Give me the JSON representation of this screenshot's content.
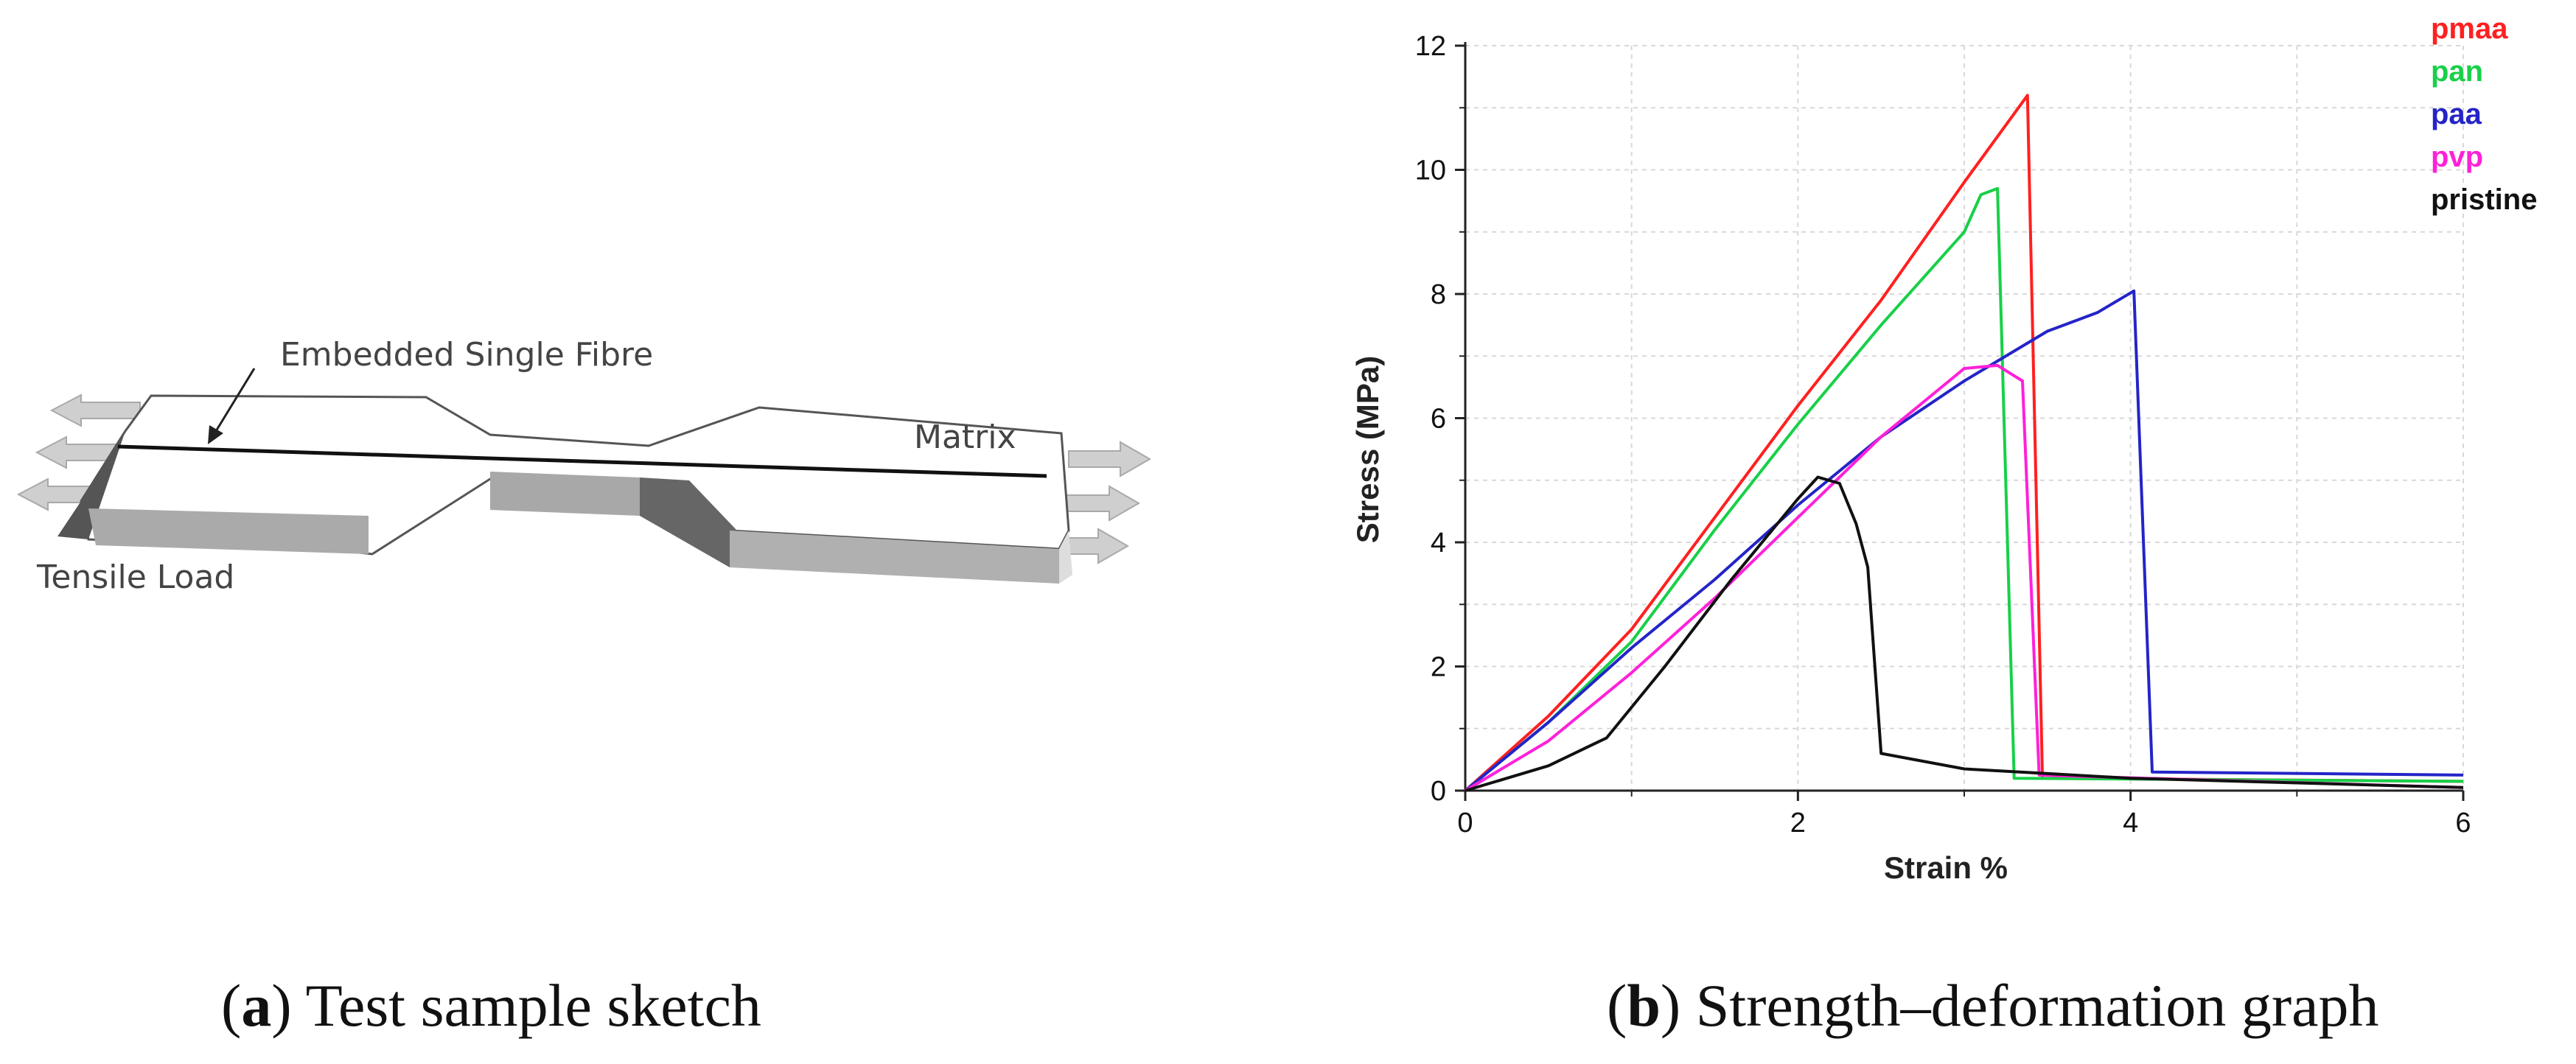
{
  "sketch": {
    "fibre_label": "Embedded Single Fibre",
    "matrix_label": "Matrix",
    "load_label": "Tensile Load"
  },
  "captions": {
    "a": {
      "letter": "a",
      "text": "Test sample sketch"
    },
    "b": {
      "letter": "b",
      "text": "Strength–deformation graph"
    }
  },
  "colors": {
    "pmaa": "#ff2020",
    "pan": "#18d048",
    "paa": "#2424c8",
    "pvp": "#ff20d8",
    "pristine": "#111111",
    "grid": "#d8d8d8"
  },
  "chart_data": {
    "type": "line",
    "title": "",
    "xlabel": "Strain %",
    "ylabel": "Stress (MPa)",
    "xlim": [
      0,
      6
    ],
    "ylim": [
      0,
      12
    ],
    "xticks": [
      "0",
      "2",
      "4",
      "6"
    ],
    "yticks": [
      "0",
      "2",
      "4",
      "6",
      "8",
      "10",
      "12"
    ],
    "grid": true,
    "legend_position": "top-right",
    "series": [
      {
        "name": "pmaa",
        "color": "#ff2020",
        "points": [
          [
            0,
            0
          ],
          [
            0.5,
            1.2
          ],
          [
            1.0,
            2.6
          ],
          [
            1.5,
            4.4
          ],
          [
            2.0,
            6.2
          ],
          [
            2.5,
            7.9
          ],
          [
            3.0,
            9.8
          ],
          [
            3.38,
            11.2
          ],
          [
            3.47,
            0.2
          ],
          [
            6.0,
            0.15
          ]
        ]
      },
      {
        "name": "pan",
        "color": "#18d048",
        "points": [
          [
            0,
            0
          ],
          [
            0.5,
            1.1
          ],
          [
            1.0,
            2.4
          ],
          [
            1.5,
            4.2
          ],
          [
            2.0,
            5.9
          ],
          [
            2.5,
            7.5
          ],
          [
            3.0,
            9.0
          ],
          [
            3.1,
            9.6
          ],
          [
            3.2,
            9.7
          ],
          [
            3.3,
            0.2
          ],
          [
            6.0,
            0.15
          ]
        ]
      },
      {
        "name": "paa",
        "color": "#2424c8",
        "points": [
          [
            0,
            0
          ],
          [
            0.5,
            1.1
          ],
          [
            1.0,
            2.3
          ],
          [
            1.5,
            3.4
          ],
          [
            2.0,
            4.6
          ],
          [
            2.5,
            5.7
          ],
          [
            3.0,
            6.6
          ],
          [
            3.5,
            7.4
          ],
          [
            3.8,
            7.7
          ],
          [
            4.02,
            8.05
          ],
          [
            4.13,
            0.3
          ],
          [
            6.0,
            0.25
          ]
        ]
      },
      {
        "name": "pvp",
        "color": "#ff20d8",
        "points": [
          [
            0,
            0
          ],
          [
            0.5,
            0.8
          ],
          [
            1.0,
            1.9
          ],
          [
            1.5,
            3.1
          ],
          [
            2.0,
            4.4
          ],
          [
            2.5,
            5.7
          ],
          [
            3.0,
            6.8
          ],
          [
            3.2,
            6.85
          ],
          [
            3.35,
            6.6
          ],
          [
            3.45,
            0.25
          ],
          [
            6.0,
            0.05
          ]
        ]
      },
      {
        "name": "pristine",
        "color": "#111111",
        "points": [
          [
            0,
            0
          ],
          [
            0.5,
            0.4
          ],
          [
            0.85,
            0.85
          ],
          [
            1.2,
            2.0
          ],
          [
            1.6,
            3.4
          ],
          [
            2.0,
            4.7
          ],
          [
            2.12,
            5.05
          ],
          [
            2.25,
            4.95
          ],
          [
            2.35,
            4.3
          ],
          [
            2.42,
            3.6
          ],
          [
            2.5,
            0.6
          ],
          [
            3.0,
            0.35
          ],
          [
            4.0,
            0.2
          ],
          [
            6.0,
            0.05
          ]
        ]
      }
    ]
  }
}
